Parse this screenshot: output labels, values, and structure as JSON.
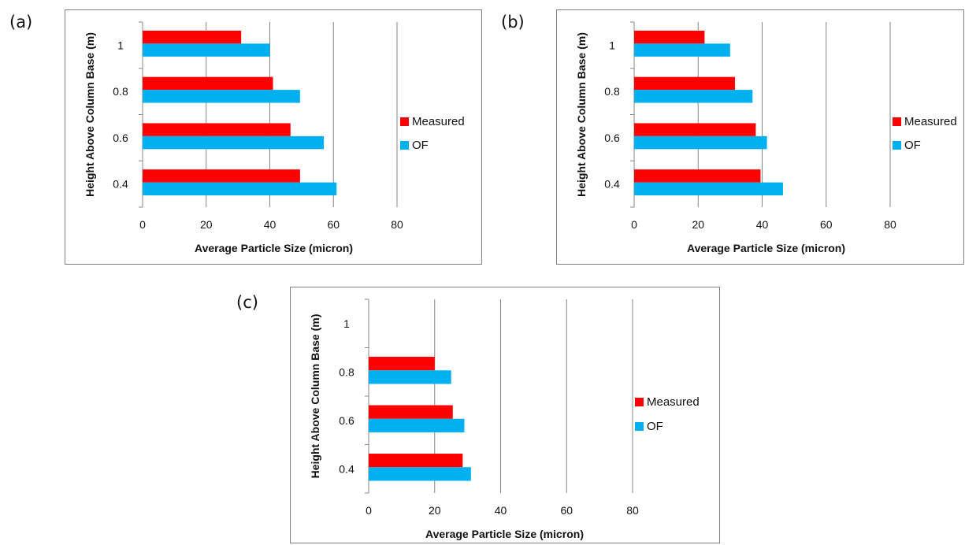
{
  "colors": {
    "measured": "#ff0000",
    "of": "#00b0f0",
    "grid": "#868686",
    "frame": "#7f7f7f"
  },
  "chart_data": [
    {
      "type": "bar",
      "orientation": "horizontal",
      "panel_label": "(a)",
      "categories": [
        "0.4",
        "0.6",
        "0.8",
        "1"
      ],
      "series": [
        {
          "name": "Measured",
          "values": [
            49.5,
            46.5,
            41,
            31
          ]
        },
        {
          "name": "OF",
          "values": [
            61,
            57,
            49.5,
            40
          ]
        }
      ],
      "xlabel": "Average Particle Size (micron)",
      "ylabel": "Height Above Column Base (m)",
      "xlim": [
        0,
        80
      ],
      "xticks": [
        "0",
        "20",
        "40",
        "60",
        "80"
      ],
      "grid": "vertical",
      "legend": "right"
    },
    {
      "type": "bar",
      "orientation": "horizontal",
      "panel_label": "(b)",
      "categories": [
        "0.4",
        "0.6",
        "0.8",
        "1"
      ],
      "series": [
        {
          "name": "Measured",
          "values": [
            39.5,
            38,
            31.5,
            22
          ]
        },
        {
          "name": "OF",
          "values": [
            46.5,
            41.5,
            37,
            30
          ]
        }
      ],
      "xlabel": "Average Particle Size (micron)",
      "ylabel": "Height Above Column Base (m)",
      "xlim": [
        0,
        80
      ],
      "xticks": [
        "0",
        "20",
        "40",
        "60",
        "80"
      ],
      "grid": "vertical",
      "legend": "right"
    },
    {
      "type": "bar",
      "orientation": "horizontal",
      "panel_label": "(c)",
      "categories": [
        "0.4",
        "0.6",
        "0.8",
        "1"
      ],
      "series": [
        {
          "name": "Measured",
          "values": [
            28.5,
            25.5,
            20,
            null
          ]
        },
        {
          "name": "OF",
          "values": [
            31,
            29,
            25,
            null
          ]
        }
      ],
      "xlabel": "Average Particle Size (micron)",
      "ylabel": "Height Above Column Base (m)",
      "xlim": [
        0,
        80
      ],
      "xticks": [
        "0",
        "20",
        "40",
        "60",
        "80"
      ],
      "grid": "vertical",
      "legend": "right"
    }
  ]
}
